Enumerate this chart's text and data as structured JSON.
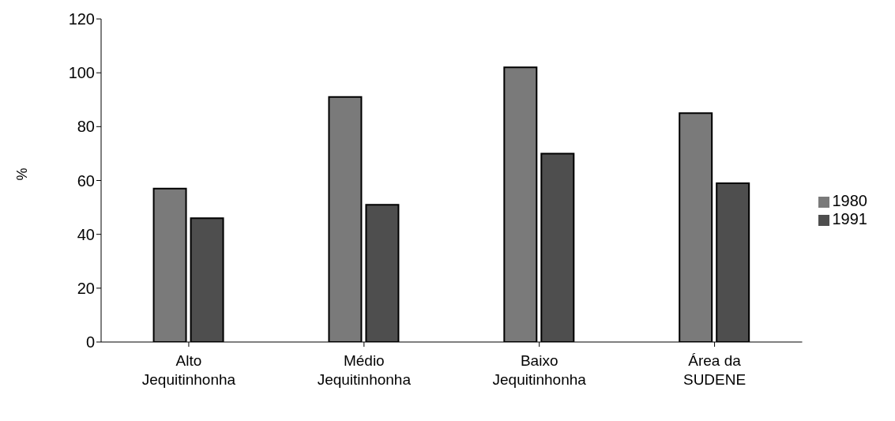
{
  "chart_data": {
    "type": "bar",
    "ylabel": "%",
    "categories": [
      "Alto Jequitinhonha",
      "Médio Jequitinhonha",
      "Baixo Jequitinhonha",
      "Área da SUDENE"
    ],
    "series": [
      {
        "name": "1980",
        "color": "#7a7a7a",
        "values": [
          57,
          91,
          102,
          85
        ]
      },
      {
        "name": "1991",
        "color": "#4e4e4e",
        "values": [
          46,
          51,
          70,
          59
        ]
      }
    ],
    "ylim": [
      0,
      120
    ],
    "yticks": [
      0,
      20,
      40,
      60,
      80,
      100,
      120
    ],
    "legend": "right"
  }
}
